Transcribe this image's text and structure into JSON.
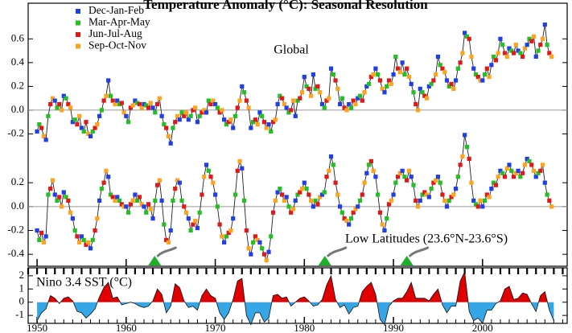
{
  "chart_data": [
    {
      "type": "line",
      "title": "Temperature Anomaly (°C): Seasonal Resolution",
      "label": "Global",
      "xlim": [
        1949,
        2009.5
      ],
      "ylim": [
        -0.4,
        0.9
      ],
      "yticks": [
        -0.2,
        {
          "value": 0,
          "label": "0.0"
        },
        0.2,
        0.4,
        0.6
      ],
      "x": [
        1950,
        1951,
        1952,
        1953,
        1954,
        1955,
        1956,
        1957,
        1958,
        1959,
        1960,
        1961,
        1962,
        1963,
        1964,
        1965,
        1966,
        1967,
        1968,
        1969,
        1970,
        1971,
        1972,
        1973,
        1974,
        1975,
        1976,
        1977,
        1978,
        1979,
        1980,
        1981,
        1982,
        1983,
        1984,
        1985,
        1986,
        1987,
        1988,
        1989,
        1990,
        1991,
        1992,
        1993,
        1994,
        1995,
        1996,
        1997,
        1998,
        1999,
        2000,
        2001,
        2002,
        2003,
        2004,
        2005,
        2006,
        2007
      ],
      "series": [
        {
          "name": "Dec-Jan-Feb",
          "color": "#1f3fe8",
          "values": [
            -0.18,
            -0.25,
            0.08,
            0.12,
            -0.1,
            -0.15,
            -0.22,
            -0.05,
            0.25,
            0.08,
            -0.05,
            0.08,
            0.05,
            0.02,
            -0.05,
            -0.28,
            -0.08,
            -0.08,
            -0.1,
            -0.02,
            0.05,
            -0.08,
            -0.15,
            0.2,
            -0.15,
            -0.02,
            -0.12,
            0.05,
            0.02,
            -0.05,
            0.28,
            0.3,
            0.05,
            0.35,
            0.05,
            0.05,
            0.1,
            0.2,
            0.35,
            0.15,
            0.3,
            0.4,
            0.22,
            0.18,
            0.2,
            0.45,
            0.25,
            0.25,
            0.65,
            0.35,
            0.25,
            0.38,
            0.6,
            0.52,
            0.5,
            0.55,
            0.45,
            0.72
          ]
        },
        {
          "name": "Mar-Apr-May",
          "color": "#22c022",
          "values": [
            -0.12,
            -0.05,
            0.02,
            0.1,
            -0.08,
            -0.18,
            -0.18,
            0.0,
            0.12,
            0.05,
            -0.1,
            0.06,
            0.04,
            -0.02,
            -0.12,
            -0.15,
            -0.02,
            -0.05,
            -0.05,
            0.08,
            0.02,
            -0.12,
            -0.05,
            0.15,
            -0.1,
            -0.05,
            -0.18,
            0.12,
            -0.02,
            0.08,
            0.2,
            0.18,
            0.02,
            0.3,
            0.1,
            0.02,
            0.12,
            0.22,
            0.3,
            0.2,
            0.45,
            0.3,
            0.15,
            0.15,
            0.22,
            0.38,
            0.2,
            0.35,
            0.62,
            0.3,
            0.3,
            0.45,
            0.55,
            0.5,
            0.48,
            0.6,
            0.5,
            0.55
          ]
        },
        {
          "name": "Jun-Jul-Aug",
          "color": "#e01818",
          "values": [
            -0.15,
            0.05,
            0.05,
            0.05,
            -0.12,
            -0.1,
            -0.15,
            0.08,
            0.08,
            0.06,
            0.02,
            0.05,
            0.02,
            0.05,
            -0.15,
            -0.1,
            -0.05,
            0.0,
            -0.02,
            0.05,
            -0.02,
            -0.1,
            0.02,
            0.08,
            -0.08,
            -0.1,
            -0.1,
            0.1,
            0.0,
            0.1,
            0.18,
            0.2,
            0.08,
            0.25,
            0.02,
            0.08,
            0.08,
            0.28,
            0.25,
            0.25,
            0.35,
            0.35,
            0.05,
            0.12,
            0.25,
            0.35,
            0.22,
            0.4,
            0.6,
            0.28,
            0.35,
            0.42,
            0.48,
            0.48,
            0.45,
            0.58,
            0.55,
            0.48
          ]
        },
        {
          "name": "Sep-Oct-Nov",
          "color": "#ffa31a",
          "values": [
            -0.22,
            0.1,
            0.0,
            0.02,
            -0.05,
            -0.2,
            -0.12,
            0.12,
            0.05,
            -0.02,
            0.04,
            0.02,
            0.06,
            0.1,
            -0.22,
            -0.05,
            -0.02,
            0.02,
            0.0,
            0.08,
            0.0,
            -0.08,
            0.08,
            0.02,
            -0.12,
            -0.15,
            -0.08,
            0.05,
            0.08,
            0.15,
            0.12,
            0.15,
            0.1,
            0.18,
            0.0,
            0.05,
            0.15,
            0.3,
            0.18,
            0.22,
            0.32,
            0.28,
            0.0,
            0.1,
            0.3,
            0.32,
            0.18,
            0.48,
            0.45,
            0.25,
            0.28,
            0.48,
            0.45,
            0.55,
            0.52,
            0.62,
            0.6,
            0.45
          ]
        }
      ]
    },
    {
      "type": "line",
      "label": "Low Latitudes (23.6°N-23.6°S)",
      "xlim": [
        1949,
        2009.5
      ],
      "ylim": [
        -0.5,
        0.7
      ],
      "yticks": [
        -0.4,
        -0.2,
        {
          "value": 0,
          "label": "0.0"
        },
        0.2
      ],
      "markers_x": [
        1963.2,
        1982.3,
        1991.5
      ],
      "x": [
        1950,
        1951,
        1952,
        1953,
        1954,
        1955,
        1956,
        1957,
        1958,
        1959,
        1960,
        1961,
        1962,
        1963,
        1964,
        1965,
        1966,
        1967,
        1968,
        1969,
        1970,
        1971,
        1972,
        1973,
        1974,
        1975,
        1976,
        1977,
        1978,
        1979,
        1980,
        1981,
        1982,
        1983,
        1984,
        1985,
        1986,
        1987,
        1988,
        1989,
        1990,
        1991,
        1992,
        1993,
        1994,
        1995,
        1996,
        1997,
        1998,
        1999,
        2000,
        2001,
        2002,
        2003,
        2004,
        2005,
        2006,
        2007
      ],
      "series": [
        {
          "name": "Dec-Jan-Feb",
          "color": "#1f3fe8",
          "values": [
            -0.2,
            -0.25,
            0.1,
            0.12,
            -0.1,
            -0.25,
            -0.35,
            0.05,
            0.25,
            0.08,
            0.0,
            0.1,
            0.0,
            -0.1,
            0.05,
            -0.2,
            0.2,
            -0.1,
            -0.18,
            0.35,
            0.1,
            -0.3,
            -0.1,
            0.32,
            -0.4,
            -0.3,
            -0.38,
            0.12,
            0.08,
            0.05,
            0.2,
            0.0,
            0.1,
            0.42,
            0.0,
            -0.15,
            0.0,
            0.28,
            0.25,
            -0.2,
            0.1,
            0.3,
            0.25,
            0.05,
            0.08,
            0.25,
            0.0,
            0.15,
            0.6,
            0.05,
            0.0,
            0.15,
            0.3,
            0.35,
            0.3,
            0.4,
            0.25,
            0.2
          ]
        },
        {
          "name": "Mar-Apr-May",
          "color": "#22c022",
          "values": [
            -0.28,
            0.1,
            0.05,
            0.08,
            -0.2,
            -0.28,
            -0.28,
            0.15,
            0.1,
            0.05,
            -0.05,
            0.05,
            -0.05,
            0.05,
            -0.15,
            0.05,
            0.05,
            -0.2,
            -0.05,
            0.3,
            0.0,
            -0.25,
            0.1,
            0.05,
            -0.3,
            -0.35,
            -0.25,
            0.15,
            0.0,
            0.1,
            0.15,
            0.05,
            0.12,
            0.35,
            -0.05,
            -0.1,
            0.05,
            0.35,
            0.1,
            -0.1,
            0.2,
            0.25,
            0.18,
            0.1,
            0.15,
            0.2,
            0.05,
            0.25,
            0.5,
            0.02,
            0.05,
            0.2,
            0.28,
            0.3,
            0.25,
            0.38,
            0.28,
            0.1
          ]
        },
        {
          "name": "Jun-Jul-Aug",
          "color": "#e01818",
          "values": [
            -0.22,
            0.15,
            0.08,
            0.05,
            -0.25,
            -0.32,
            -0.2,
            0.2,
            0.08,
            0.02,
            0.02,
            0.08,
            0.02,
            0.18,
            -0.28,
            0.15,
            0.0,
            -0.15,
            0.1,
            0.25,
            -0.15,
            -0.22,
            0.3,
            -0.2,
            -0.25,
            -0.4,
            -0.05,
            0.1,
            -0.05,
            0.12,
            0.1,
            0.02,
            0.25,
            0.2,
            -0.1,
            -0.05,
            0.1,
            0.38,
            -0.05,
            0.02,
            0.25,
            0.22,
            0.05,
            0.12,
            0.2,
            0.1,
            0.08,
            0.35,
            0.4,
            0.0,
            0.1,
            0.18,
            0.25,
            0.25,
            0.28,
            0.35,
            0.3,
            0.05
          ]
        },
        {
          "name": "Sep-Oct-Nov",
          "color": "#ffa31a",
          "values": [
            -0.3,
            0.22,
            0.0,
            -0.05,
            -0.3,
            -0.3,
            -0.1,
            0.3,
            0.05,
            0.0,
            0.05,
            0.02,
            -0.02,
            0.22,
            -0.3,
            0.22,
            -0.05,
            -0.12,
            0.25,
            0.2,
            -0.25,
            -0.2,
            0.38,
            -0.35,
            -0.28,
            -0.45,
            0.05,
            0.05,
            -0.02,
            0.15,
            0.05,
            0.08,
            0.3,
            0.1,
            -0.12,
            -0.02,
            0.2,
            0.3,
            -0.15,
            0.05,
            0.28,
            0.3,
            0.0,
            0.1,
            0.22,
            0.05,
            0.1,
            0.42,
            0.2,
            0.05,
            0.08,
            0.25,
            0.32,
            0.28,
            0.35,
            0.3,
            0.35,
            0.0
          ]
        }
      ]
    },
    {
      "type": "area",
      "label": "Nino 3.4 SST (°C)",
      "xlim": [
        1949,
        2009.5
      ],
      "ylim": [
        -1.6,
        2.6
      ],
      "xticks": [
        1950,
        1960,
        1970,
        1980,
        1990,
        2000
      ],
      "yticks": [
        -1,
        0,
        1,
        2
      ],
      "color_above": "#e00000",
      "color_below": "#35a7e6",
      "x": [
        1950,
        1950.5,
        1951,
        1951.5,
        1952,
        1952.5,
        1953,
        1953.5,
        1954,
        1954.5,
        1955,
        1955.5,
        1956,
        1956.5,
        1957,
        1957.5,
        1958,
        1958.5,
        1959,
        1959.5,
        1960,
        1960.5,
        1961,
        1961.5,
        1962,
        1962.5,
        1963,
        1963.5,
        1964,
        1964.5,
        1965,
        1965.5,
        1966,
        1966.5,
        1967,
        1967.5,
        1968,
        1968.5,
        1969,
        1969.5,
        1970,
        1970.5,
        1971,
        1971.5,
        1972,
        1972.5,
        1973,
        1973.5,
        1974,
        1974.5,
        1975,
        1975.5,
        1976,
        1976.5,
        1977,
        1977.5,
        1978,
        1978.5,
        1979,
        1979.5,
        1980,
        1980.5,
        1981,
        1981.5,
        1982,
        1982.5,
        1983,
        1983.5,
        1984,
        1984.5,
        1985,
        1985.5,
        1986,
        1986.5,
        1987,
        1987.5,
        1988,
        1988.5,
        1989,
        1989.5,
        1990,
        1990.5,
        1991,
        1991.5,
        1992,
        1992.5,
        1993,
        1993.5,
        1994,
        1994.5,
        1995,
        1995.5,
        1996,
        1996.5,
        1997,
        1997.5,
        1998,
        1998.5,
        1999,
        1999.5,
        2000,
        2000.5,
        2001,
        2001.5,
        2002,
        2002.5,
        2003,
        2003.5,
        2004,
        2004.5,
        2005,
        2005.5,
        2006,
        2006.5,
        2007,
        2007.5,
        2008
      ],
      "values": [
        -1.4,
        -0.8,
        -0.5,
        0.5,
        0.3,
        -0.1,
        0.3,
        0.4,
        0.1,
        -0.7,
        -0.8,
        -1.2,
        -0.9,
        -0.5,
        0.4,
        1.1,
        1.5,
        0.3,
        0.4,
        -0.2,
        -0.1,
        0.0,
        -0.1,
        -0.3,
        -0.4,
        -0.3,
        0.1,
        1.0,
        0.6,
        -0.8,
        -0.3,
        1.4,
        1.1,
        0.1,
        -0.4,
        -0.3,
        -0.6,
        0.5,
        1.0,
        0.5,
        0.3,
        -0.8,
        -1.3,
        -0.8,
        0.2,
        1.6,
        1.8,
        -1.0,
        -1.7,
        -0.8,
        -0.8,
        -1.5,
        -1.2,
        0.5,
        0.6,
        0.3,
        0.4,
        -0.3,
        0.0,
        0.3,
        0.4,
        0.1,
        -0.3,
        -0.2,
        0.2,
        1.3,
        2.0,
        0.2,
        -0.4,
        -0.2,
        -0.9,
        -0.4,
        -0.3,
        0.8,
        1.2,
        1.5,
        0.6,
        -1.3,
        -1.7,
        -0.3,
        0.1,
        0.3,
        0.3,
        0.8,
        1.5,
        0.3,
        0.3,
        0.3,
        0.1,
        0.6,
        1.0,
        -0.2,
        -0.8,
        -0.3,
        -0.3,
        1.6,
        2.3,
        -0.7,
        -1.4,
        -1.2,
        -1.6,
        -0.6,
        -0.6,
        -0.1,
        0.1,
        1.0,
        1.2,
        0.2,
        0.3,
        0.7,
        0.6,
        -0.1,
        -0.7,
        0.5,
        0.8,
        -0.6,
        -1.4
      ]
    }
  ]
}
